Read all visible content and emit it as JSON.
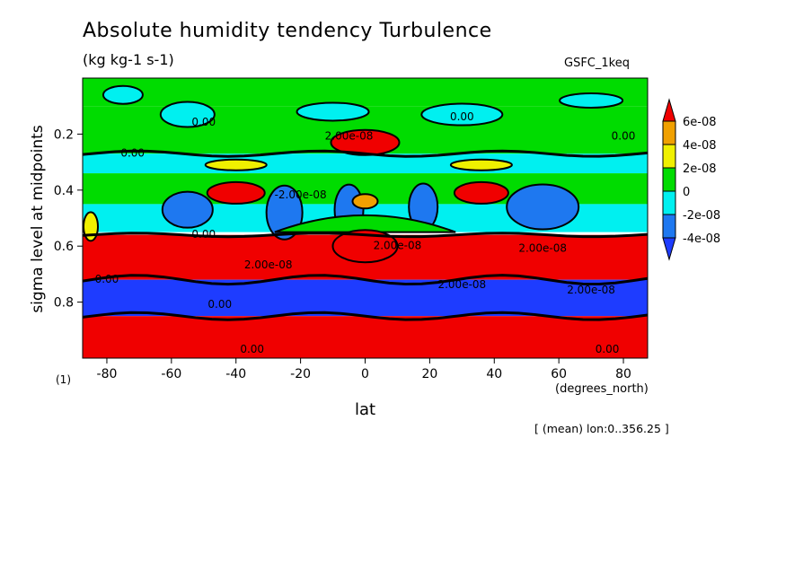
{
  "chart_data": {
    "type": "contour",
    "title": "Absolute humidity tendency Turbulence",
    "units": "(kg kg-1 s-1)",
    "dataset": "GSFC_1keq",
    "xlabel": "lat",
    "x_units": "(degrees_north)",
    "ylabel": "sigma level at midpoints",
    "footnote": "[ (mean) lon:0..356.25 ]",
    "panel_label": "(1)",
    "x_ticks": [
      -80,
      -60,
      -40,
      -20,
      0,
      20,
      40,
      60,
      80
    ],
    "x_tick_labels": [
      "-80",
      "-60",
      "-40",
      "-20",
      "0",
      "20",
      "40",
      "60",
      "80"
    ],
    "y_ticks": [
      0.2,
      0.4,
      0.6,
      0.8
    ],
    "y_tick_labels": [
      "0.2",
      "0.4",
      "0.6",
      "0.8"
    ],
    "xlim": [
      -87.5,
      87.5
    ],
    "ylim": [
      1.0,
      0.0
    ],
    "colorbar": {
      "labels": [
        "6e-08",
        "4e-08",
        "2e-08",
        "0",
        "-2e-08",
        "-4e-08"
      ],
      "colors": [
        "#f00000",
        "#f0a000",
        "#f0f000",
        "#00dc00",
        "#00f0f0",
        "#1e78f0",
        "#1e3cff"
      ]
    },
    "bands": [
      {
        "name": "top-green",
        "y": [
          0.0,
          0.1
        ],
        "color": "#00dc00"
      },
      {
        "name": "upper-green",
        "y": [
          0.1,
          0.27
        ],
        "color": "#00dc00"
      },
      {
        "name": "cyan-layer",
        "y": [
          0.27,
          0.34
        ],
        "color": "#00f0f0"
      },
      {
        "name": "green-layer",
        "y": [
          0.34,
          0.45
        ],
        "color": "#00dc00"
      },
      {
        "name": "cyan-blue-layer",
        "y": [
          0.45,
          0.55
        ],
        "color": "#00f0f0"
      },
      {
        "name": "red-lower",
        "y": [
          0.56,
          0.72
        ],
        "color": "#f00000"
      },
      {
        "name": "blue-layer",
        "y": [
          0.72,
          0.85
        ],
        "color": "#1e3cff"
      },
      {
        "name": "red-bottom",
        "y": [
          0.85,
          1.0
        ],
        "color": "#f00000"
      }
    ],
    "contour_labels": [
      "0.00",
      "2.00e-08",
      "-2.00e-08"
    ]
  }
}
